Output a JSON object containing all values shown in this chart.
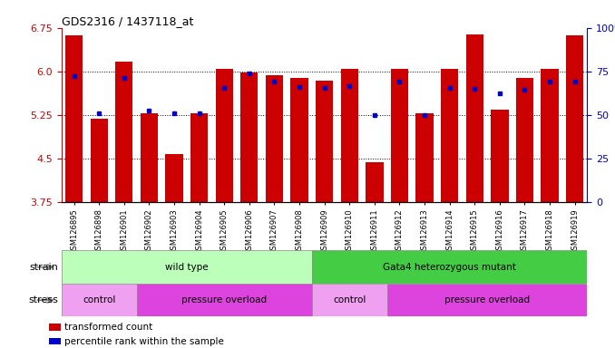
{
  "title": "GDS2316 / 1437118_at",
  "samples": [
    "GSM126895",
    "GSM126898",
    "GSM126901",
    "GSM126902",
    "GSM126903",
    "GSM126904",
    "GSM126905",
    "GSM126906",
    "GSM126907",
    "GSM126908",
    "GSM126909",
    "GSM126910",
    "GSM126911",
    "GSM126912",
    "GSM126913",
    "GSM126914",
    "GSM126915",
    "GSM126916",
    "GSM126917",
    "GSM126918",
    "GSM126919"
  ],
  "bar_values": [
    6.62,
    5.19,
    6.17,
    5.27,
    4.57,
    5.28,
    6.04,
    5.98,
    5.93,
    5.88,
    5.84,
    6.04,
    4.44,
    6.05,
    5.27,
    6.05,
    6.63,
    5.34,
    5.88,
    6.04,
    6.62
  ],
  "percentile_values": [
    5.92,
    5.28,
    5.88,
    5.33,
    5.28,
    5.28,
    5.72,
    5.97,
    5.83,
    5.73,
    5.72,
    5.75,
    5.24,
    5.83,
    5.25,
    5.72,
    5.7,
    5.62,
    5.68,
    5.82,
    5.82
  ],
  "ymin": 3.75,
  "ymax": 6.75,
  "yticks": [
    3.75,
    4.5,
    5.25,
    6.0,
    6.75
  ],
  "right_yticks": [
    0,
    25,
    50,
    75,
    100
  ],
  "bar_color": "#cc0000",
  "dot_color": "#0000cc",
  "strain_groups": [
    {
      "label": "wild type",
      "start": 0,
      "end": 10,
      "color": "#bbffbb"
    },
    {
      "label": "Gata4 heterozygous mutant",
      "start": 10,
      "end": 21,
      "color": "#44cc44"
    }
  ],
  "stress_groups": [
    {
      "label": "control",
      "start": 0,
      "end": 3,
      "color": "#f0a0f0"
    },
    {
      "label": "pressure overload",
      "start": 3,
      "end": 10,
      "color": "#dd44dd"
    },
    {
      "label": "control",
      "start": 10,
      "end": 13,
      "color": "#f0a0f0"
    },
    {
      "label": "pressure overload",
      "start": 13,
      "end": 21,
      "color": "#dd44dd"
    }
  ],
  "legend_items": [
    {
      "label": "transformed count",
      "color": "#cc0000"
    },
    {
      "label": "percentile rank within the sample",
      "color": "#0000cc"
    }
  ],
  "grid_yticks": [
    4.5,
    5.25,
    6.0
  ],
  "xlabel_bg": "#d8d8d8",
  "label_fontsize": 8,
  "tick_fontsize": 6
}
